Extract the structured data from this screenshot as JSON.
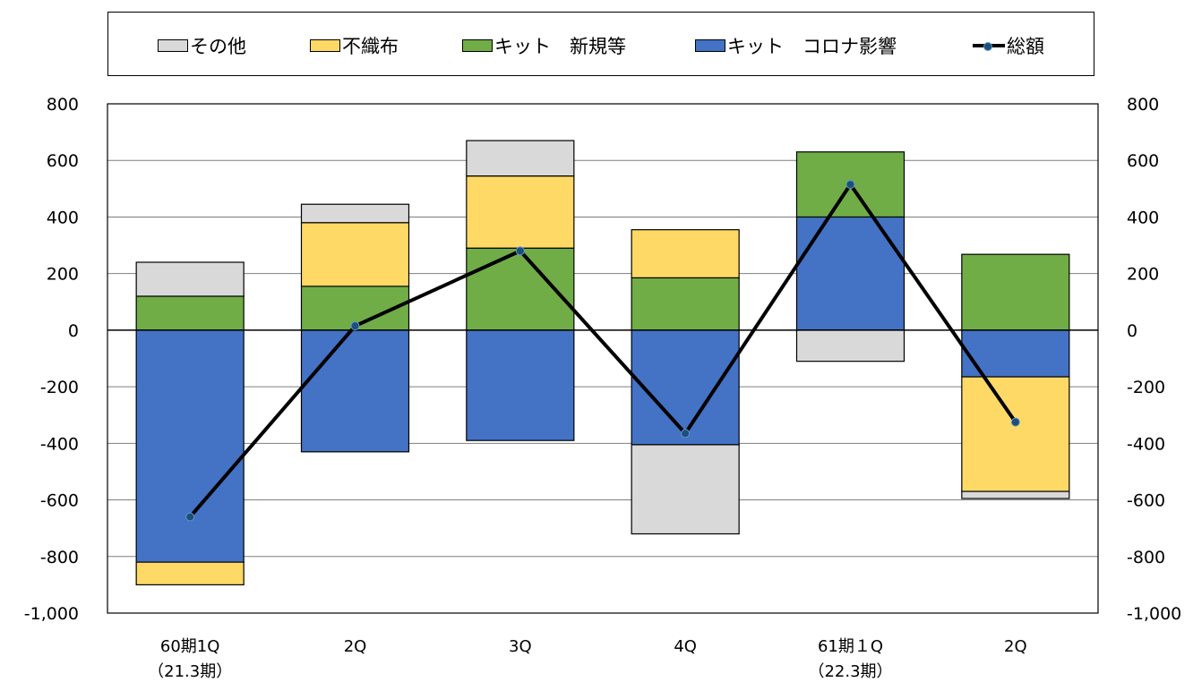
{
  "chart_data": {
    "type": "bar",
    "stacked": true,
    "categories": [
      "60期1Q",
      "2Q",
      "3Q",
      "4Q",
      "61期1Q",
      "2Q"
    ],
    "category_labels": [
      [
        "60期1Q",
        "（21.3期）"
      ],
      [
        "2Q",
        ""
      ],
      [
        "3Q",
        ""
      ],
      [
        "4Q",
        ""
      ],
      [
        "61期１Q",
        "（22.3期）"
      ],
      [
        "2Q",
        ""
      ]
    ],
    "series": [
      {
        "name": "キット　コロナ影響",
        "color": "#4472c4",
        "values": [
          -820,
          -430,
          -390,
          -405,
          400,
          -165
        ]
      },
      {
        "name": "キット　新規等",
        "color": "#70ad47",
        "values": [
          120,
          155,
          290,
          185,
          230,
          268
        ]
      },
      {
        "name": "不織布",
        "color": "#ffd966",
        "values": [
          -80,
          225,
          255,
          170,
          0,
          -405
        ]
      },
      {
        "name": "その他",
        "color": "#d9d9d9",
        "values": [
          120,
          65,
          125,
          -315,
          -110,
          -25
        ]
      }
    ],
    "line_series": {
      "name": "総額",
      "color": "#000000",
      "marker_color": "#1f4e79",
      "values": [
        -660,
        15,
        280,
        -365,
        515,
        -325
      ]
    },
    "legend_order": [
      "その他",
      "不織布",
      "キット　新規等",
      "キット　コロナ影響",
      "総額"
    ],
    "legend_position": "top",
    "ylim": [
      -1000,
      800
    ],
    "y_ticks": [
      800,
      600,
      400,
      200,
      0,
      -200,
      -400,
      -600,
      -800,
      -1000
    ],
    "y_tick_labels": [
      "800",
      "600",
      "400",
      "200",
      "0",
      "-200",
      "-400",
      "-600",
      "-800",
      "-1,000"
    ],
    "secondary_y_tick_labels": [
      "800",
      "600",
      "400",
      "200",
      "0",
      "-200",
      "-400",
      "-600",
      "-800",
      "-1,000"
    ],
    "grid": true
  }
}
